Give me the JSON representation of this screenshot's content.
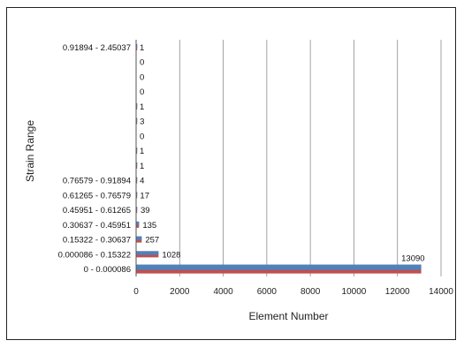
{
  "chart_data": {
    "type": "bar",
    "orientation": "horizontal",
    "title": "",
    "xlabel": "Element Number",
    "ylabel": "Strain Range",
    "xlim": [
      0,
      14000
    ],
    "xticks": [
      0,
      2000,
      4000,
      6000,
      8000,
      10000,
      12000,
      14000
    ],
    "grid": "vertical",
    "categories": [
      "0 - 0.000086",
      "0.000086 - 0.15322",
      "0.15322 - 0.30637",
      "0.30637 - 0.45951",
      "0.45951 - 0.61265",
      "0.61265 - 0.76579",
      "0.76579 - 0.91894",
      "",
      "",
      "",
      "",
      "",
      "",
      "",
      "",
      "0.91894 - 2.45037"
    ],
    "values": [
      13090,
      1028,
      257,
      135,
      39,
      17,
      4,
      1,
      1,
      0,
      3,
      1,
      0,
      0,
      0,
      1
    ],
    "data_labels": [
      "13090",
      "1028",
      "257",
      "135",
      "39",
      "17",
      "4",
      "1",
      "1",
      "0",
      "3",
      "1",
      "0",
      "0",
      "0",
      "1"
    ],
    "colors": {
      "bar_main": "#4f81bd",
      "bar_edge": "#c0504d"
    }
  }
}
